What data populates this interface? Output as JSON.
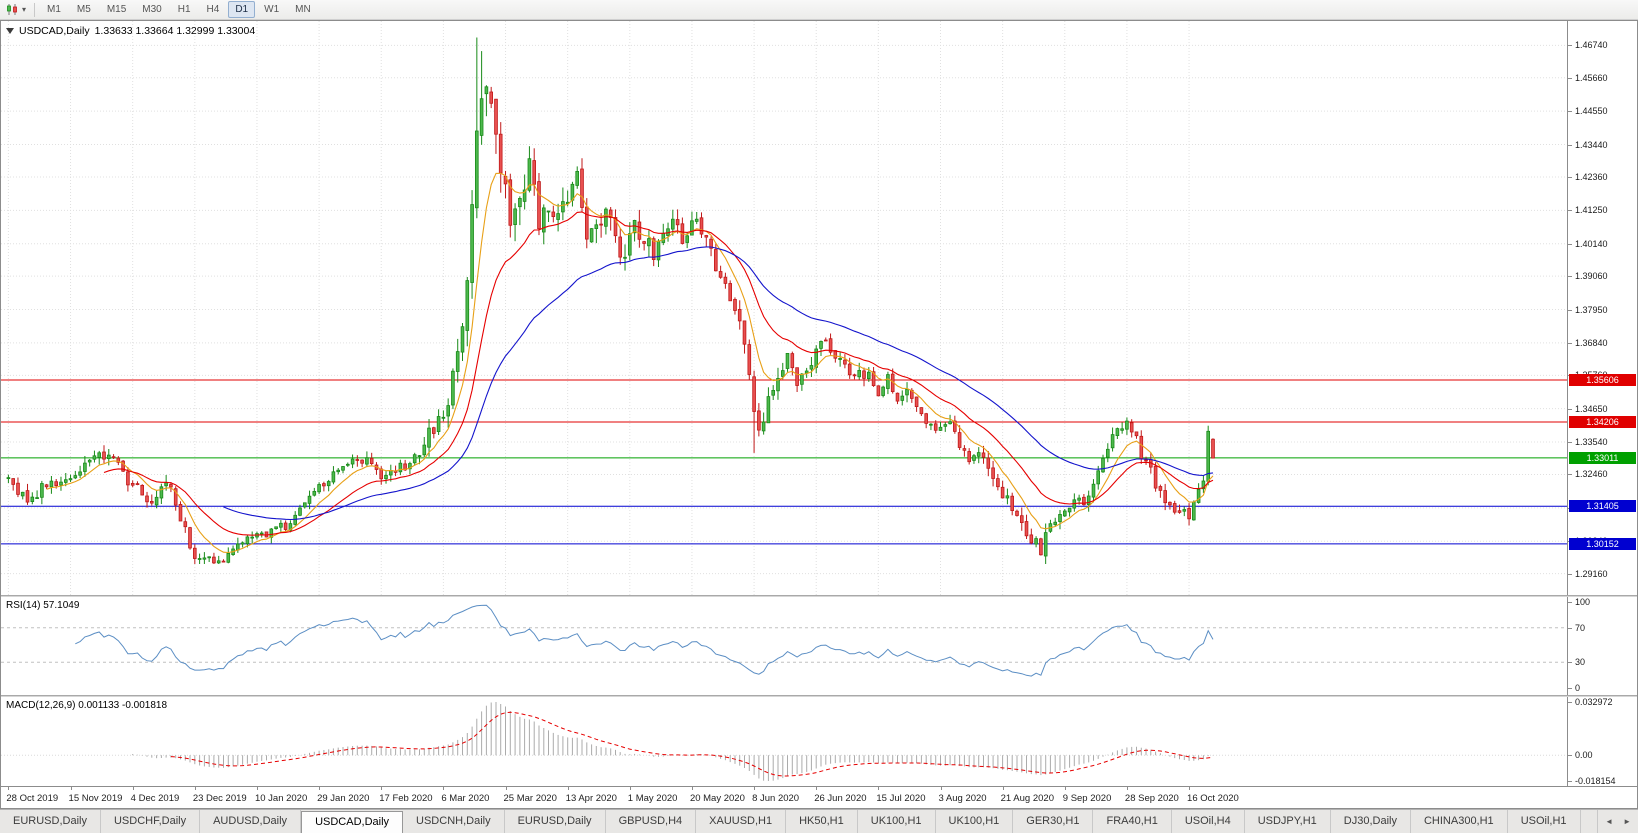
{
  "toolbar": {
    "timeframes": [
      "M1",
      "M5",
      "M15",
      "M30",
      "H1",
      "H4",
      "D1",
      "W1",
      "MN"
    ],
    "active_timeframe": "D1"
  },
  "icons": {
    "tab_scroll_left": "◄",
    "tab_scroll_right": "►",
    "toolbar_caret": "▾"
  },
  "chart": {
    "symbol_period": "USDCAD,Daily",
    "ohlc_text": "1.33633 1.33664 1.32999 1.33004",
    "price_scale_ticks": [
      "1.46740",
      "1.45660",
      "1.44550",
      "1.43440",
      "1.42360",
      "1.41250",
      "1.40140",
      "1.39060",
      "1.37950",
      "1.36840",
      "1.35760",
      "1.34650",
      "1.33540",
      "1.32460",
      "1.31350",
      "1.30240",
      "1.29160"
    ],
    "hlines": [
      {
        "price": 1.35606,
        "label": "1.35606",
        "color": "#e00000"
      },
      {
        "price": 1.34206,
        "label": "1.34206",
        "color": "#e00000"
      },
      {
        "price": 1.33011,
        "label": "1.33011",
        "color": "#00a000"
      },
      {
        "price": 1.31405,
        "label": "1.31405",
        "color": "#0000d0"
      },
      {
        "price": 1.30152,
        "label": "1.30152",
        "color": "#0000d0"
      }
    ],
    "candle_colors": {
      "up_stroke": "#188a18",
      "up_fill": "#4db84d",
      "down_stroke": "#c01818",
      "down_fill": "#e85050"
    },
    "grid_color": "#e0e0e0",
    "date_labels": [
      "28 Oct 2019",
      "15 Nov 2019",
      "4 Dec 2019",
      "23 Dec 2019",
      "10 Jan 2020",
      "29 Jan 2020",
      "17 Feb 2020",
      "6 Mar 2020",
      "25 Mar 2020",
      "13 Apr 2020",
      "1 May 2020",
      "20 May 2020",
      "8 Jun 2020",
      "26 Jun 2020",
      "15 Jul 2020",
      "3 Aug 2020",
      "21 Aug 2020",
      "9 Sep 2020",
      "28 Sep 2020",
      "16 Oct 2020"
    ]
  },
  "rsi": {
    "label": "RSI(14) 57.1049",
    "scale": [
      "100",
      "70",
      "30",
      "0"
    ],
    "levels": [
      70,
      30
    ],
    "line_color": "#5b8ec4",
    "level_color": "#c0c0c0"
  },
  "macd": {
    "label": "MACD(12,26,9) 0.001133 -0.001818",
    "scale": [
      "0.032972",
      "0.00",
      "-0.018154"
    ],
    "histogram_color": "#ababab",
    "signal_color": "#e60000"
  },
  "tabs": [
    {
      "label": "EURUSD,Daily"
    },
    {
      "label": "USDCHF,Daily"
    },
    {
      "label": "AUDUSD,Daily"
    },
    {
      "label": "USDCAD,Daily",
      "active": true
    },
    {
      "label": "USDCNH,Daily"
    },
    {
      "label": "EURUSD,Daily"
    },
    {
      "label": "GBPUSD,H4"
    },
    {
      "label": "XAUUSD,H1"
    },
    {
      "label": "HK50,H1"
    },
    {
      "label": "UK100,H1"
    },
    {
      "label": "UK100,H1"
    },
    {
      "label": "GER30,H1"
    },
    {
      "label": "FRA40,H1"
    },
    {
      "label": "USOil,H4"
    },
    {
      "label": "USDJPY,H1"
    },
    {
      "label": "DJ30,Daily"
    },
    {
      "label": "CHINA300,H1"
    },
    {
      "label": "USOil,H1"
    }
  ],
  "chart_data": {
    "type": "candlestick",
    "symbol": "USDCAD",
    "timeframe": "Daily",
    "title": "USDCAD,Daily",
    "last_candle": {
      "open": 1.33633,
      "high": 1.33664,
      "low": 1.32999,
      "close": 1.33004
    },
    "x_range": {
      "first_label": "28 Oct 2019",
      "last_label": "16 Oct 2020",
      "candles_per_label": 13
    },
    "y_axis": {
      "top": 1.4755,
      "bottom": 1.2845
    },
    "candle_count": 253,
    "close_anchors": [
      [
        0,
        1.3225
      ],
      [
        4,
        1.316
      ],
      [
        8,
        1.3205
      ],
      [
        13,
        1.3245
      ],
      [
        19,
        1.3312
      ],
      [
        23,
        1.3298
      ],
      [
        26,
        1.3205
      ],
      [
        30,
        1.3168
      ],
      [
        33,
        1.323
      ],
      [
        36,
        1.3098
      ],
      [
        39,
        1.2985
      ],
      [
        44,
        1.2958
      ],
      [
        48,
        1.3012
      ],
      [
        52,
        1.3042
      ],
      [
        58,
        1.3078
      ],
      [
        62,
        1.3142
      ],
      [
        65,
        1.3212
      ],
      [
        70,
        1.3272
      ],
      [
        74,
        1.3296
      ],
      [
        78,
        1.3246
      ],
      [
        82,
        1.3268
      ],
      [
        86,
        1.3315
      ],
      [
        89,
        1.3398
      ],
      [
        91,
        1.3428
      ],
      [
        93,
        1.3565
      ],
      [
        95,
        1.3715
      ],
      [
        97,
        1.413
      ],
      [
        99,
        1.456
      ],
      [
        101,
        1.448
      ],
      [
        103,
        1.428
      ],
      [
        105,
        1.4055
      ],
      [
        107,
        1.418
      ],
      [
        109,
        1.425
      ],
      [
        111,
        1.4095
      ],
      [
        113,
        1.416
      ],
      [
        115,
        1.4085
      ],
      [
        117,
        1.4185
      ],
      [
        119,
        1.4235
      ],
      [
        121,
        1.406
      ],
      [
        123,
        1.4095
      ],
      [
        125,
        1.4135
      ],
      [
        127,
        1.4035
      ],
      [
        129,
        1.3968
      ],
      [
        131,
        1.4075
      ],
      [
        133,
        1.4028
      ],
      [
        135,
        1.3988
      ],
      [
        137,
        1.4058
      ],
      [
        139,
        1.4098
      ],
      [
        141,
        1.4038
      ],
      [
        143,
        1.4098
      ],
      [
        145,
        1.4062
      ],
      [
        147,
        1.3985
      ],
      [
        149,
        1.3905
      ],
      [
        151,
        1.3825
      ],
      [
        153,
        1.3755
      ],
      [
        155,
        1.36
      ],
      [
        156,
        1.345
      ],
      [
        157,
        1.3392
      ],
      [
        159,
        1.3478
      ],
      [
        161,
        1.358
      ],
      [
        163,
        1.3622
      ],
      [
        165,
        1.3548
      ],
      [
        167,
        1.3588
      ],
      [
        169,
        1.3645
      ],
      [
        171,
        1.3688
      ],
      [
        173,
        1.3625
      ],
      [
        175,
        1.3605
      ],
      [
        177,
        1.3555
      ],
      [
        179,
        1.3585
      ],
      [
        182,
        1.3525
      ],
      [
        184,
        1.3565
      ],
      [
        186,
        1.3505
      ],
      [
        188,
        1.3545
      ],
      [
        190,
        1.3485
      ],
      [
        192,
        1.3425
      ],
      [
        195,
        1.3385
      ],
      [
        197,
        1.3425
      ],
      [
        199,
        1.3355
      ],
      [
        201,
        1.3285
      ],
      [
        203,
        1.3325
      ],
      [
        205,
        1.3265
      ],
      [
        208,
        1.3185
      ],
      [
        210,
        1.3125
      ],
      [
        212,
        1.3065
      ],
      [
        214,
        1.3025
      ],
      [
        216,
        1.2998
      ],
      [
        218,
        1.3065
      ],
      [
        221,
        1.3135
      ],
      [
        223,
        1.3172
      ],
      [
        225,
        1.3155
      ],
      [
        227,
        1.3205
      ],
      [
        229,
        1.3285
      ],
      [
        231,
        1.3382
      ],
      [
        233,
        1.3418
      ],
      [
        235,
        1.3395
      ],
      [
        237,
        1.3318
      ],
      [
        239,
        1.3252
      ],
      [
        241,
        1.3185
      ],
      [
        243,
        1.3155
      ],
      [
        245,
        1.3125
      ],
      [
        247,
        1.311
      ],
      [
        249,
        1.318
      ],
      [
        250,
        1.324
      ],
      [
        251,
        1.3375
      ],
      [
        252,
        1.33
      ]
    ],
    "volatility_anchors": [
      [
        0,
        0.0045
      ],
      [
        20,
        0.0045
      ],
      [
        36,
        0.005
      ],
      [
        44,
        0.004
      ],
      [
        60,
        0.0038
      ],
      [
        80,
        0.004
      ],
      [
        90,
        0.006
      ],
      [
        95,
        0.01
      ],
      [
        100,
        0.015
      ],
      [
        105,
        0.013
      ],
      [
        112,
        0.01
      ],
      [
        120,
        0.009
      ],
      [
        130,
        0.008
      ],
      [
        140,
        0.0065
      ],
      [
        150,
        0.006
      ],
      [
        158,
        0.007
      ],
      [
        168,
        0.0055
      ],
      [
        180,
        0.005
      ],
      [
        195,
        0.0045
      ],
      [
        210,
        0.005
      ],
      [
        216,
        0.0055
      ],
      [
        225,
        0.0045
      ],
      [
        233,
        0.005
      ],
      [
        242,
        0.0045
      ],
      [
        252,
        0.004
      ]
    ],
    "forced_extremes": [
      {
        "index": 98,
        "high": 1.47
      },
      {
        "index": 99,
        "high": 1.4655
      },
      {
        "index": 44,
        "low": 1.2951
      },
      {
        "index": 216,
        "low": 1.2994
      },
      {
        "index": 156,
        "low": 1.3318
      },
      {
        "index": 247,
        "low": 1.3095
      }
    ],
    "clamp": {
      "max_high": 1.47,
      "min_low": 1.2948
    },
    "ma_lines": [
      {
        "color": "#e8a017",
        "estimated_period": 8
      },
      {
        "color": "#e60000",
        "estimated_period": 20
      },
      {
        "color": "#1414cc",
        "estimated_period": 45
      }
    ],
    "indicators": [
      {
        "name": "RSI",
        "period": 14,
        "current_value": 57.1049
      },
      {
        "name": "MACD",
        "params": [
          12,
          26,
          9
        ],
        "current_values": [
          0.001133,
          -0.001818
        ]
      }
    ]
  }
}
